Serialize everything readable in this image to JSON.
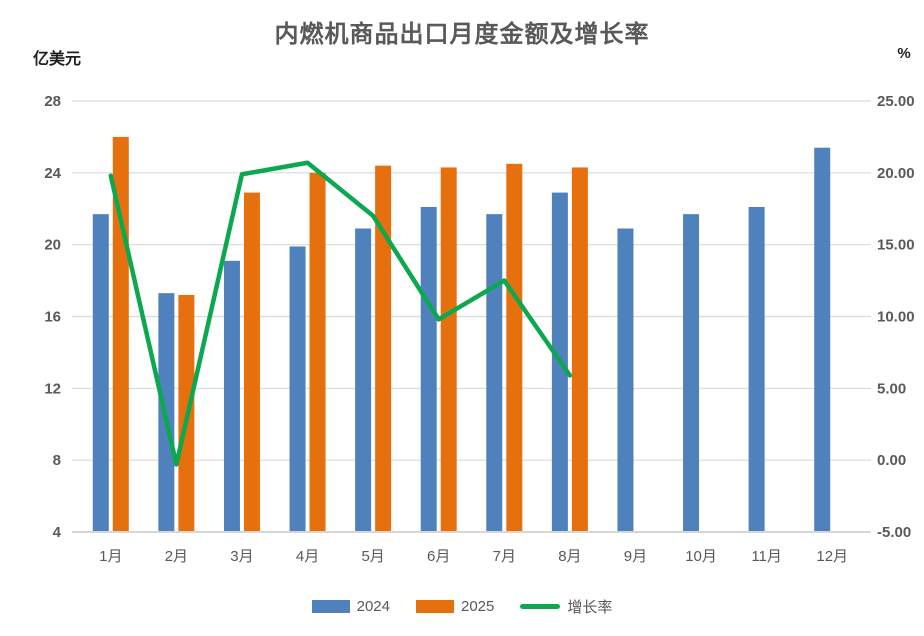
{
  "chart_data": {
    "type": "combo",
    "title": "内燃机商品出口月度金额及增长率",
    "categories": [
      "1月",
      "2月",
      "3月",
      "4月",
      "5月",
      "6月",
      "7月",
      "8月",
      "9月",
      "10月",
      "11月",
      "12月"
    ],
    "y_left": {
      "unit_label": "亿美元",
      "min": 4,
      "max": 28,
      "ticks": [
        28,
        24,
        20,
        16,
        12,
        8,
        4
      ]
    },
    "y_right": {
      "unit_label": "%",
      "min": -5,
      "max": 25,
      "tick_labels": [
        "25.00",
        "20.00",
        "15.00",
        "10.00",
        "5.00",
        "0.00",
        "-5.00"
      ]
    },
    "series": [
      {
        "name": "2024",
        "type": "bar",
        "axis": "left",
        "color": "#4F81BD",
        "values": [
          21.7,
          17.3,
          19.1,
          19.9,
          20.9,
          22.1,
          21.7,
          22.9,
          20.9,
          21.7,
          22.1,
          25.4
        ]
      },
      {
        "name": "2025",
        "type": "bar",
        "axis": "left",
        "color": "#E7700E",
        "values": [
          26.0,
          17.2,
          22.9,
          24.0,
          24.4,
          24.3,
          24.5,
          24.3,
          null,
          null,
          null,
          null
        ]
      },
      {
        "name": "增长率",
        "type": "line",
        "axis": "right",
        "color": "#0BA84F",
        "values": [
          19.8,
          -0.3,
          19.9,
          20.7,
          17.0,
          9.8,
          12.5,
          5.9,
          null,
          null,
          null,
          null
        ]
      }
    ],
    "legend_position": "bottom",
    "grid": true,
    "colors": {
      "gridline": "#DADADA",
      "axis_line": "#D6D6D6",
      "text": "#595959"
    }
  }
}
